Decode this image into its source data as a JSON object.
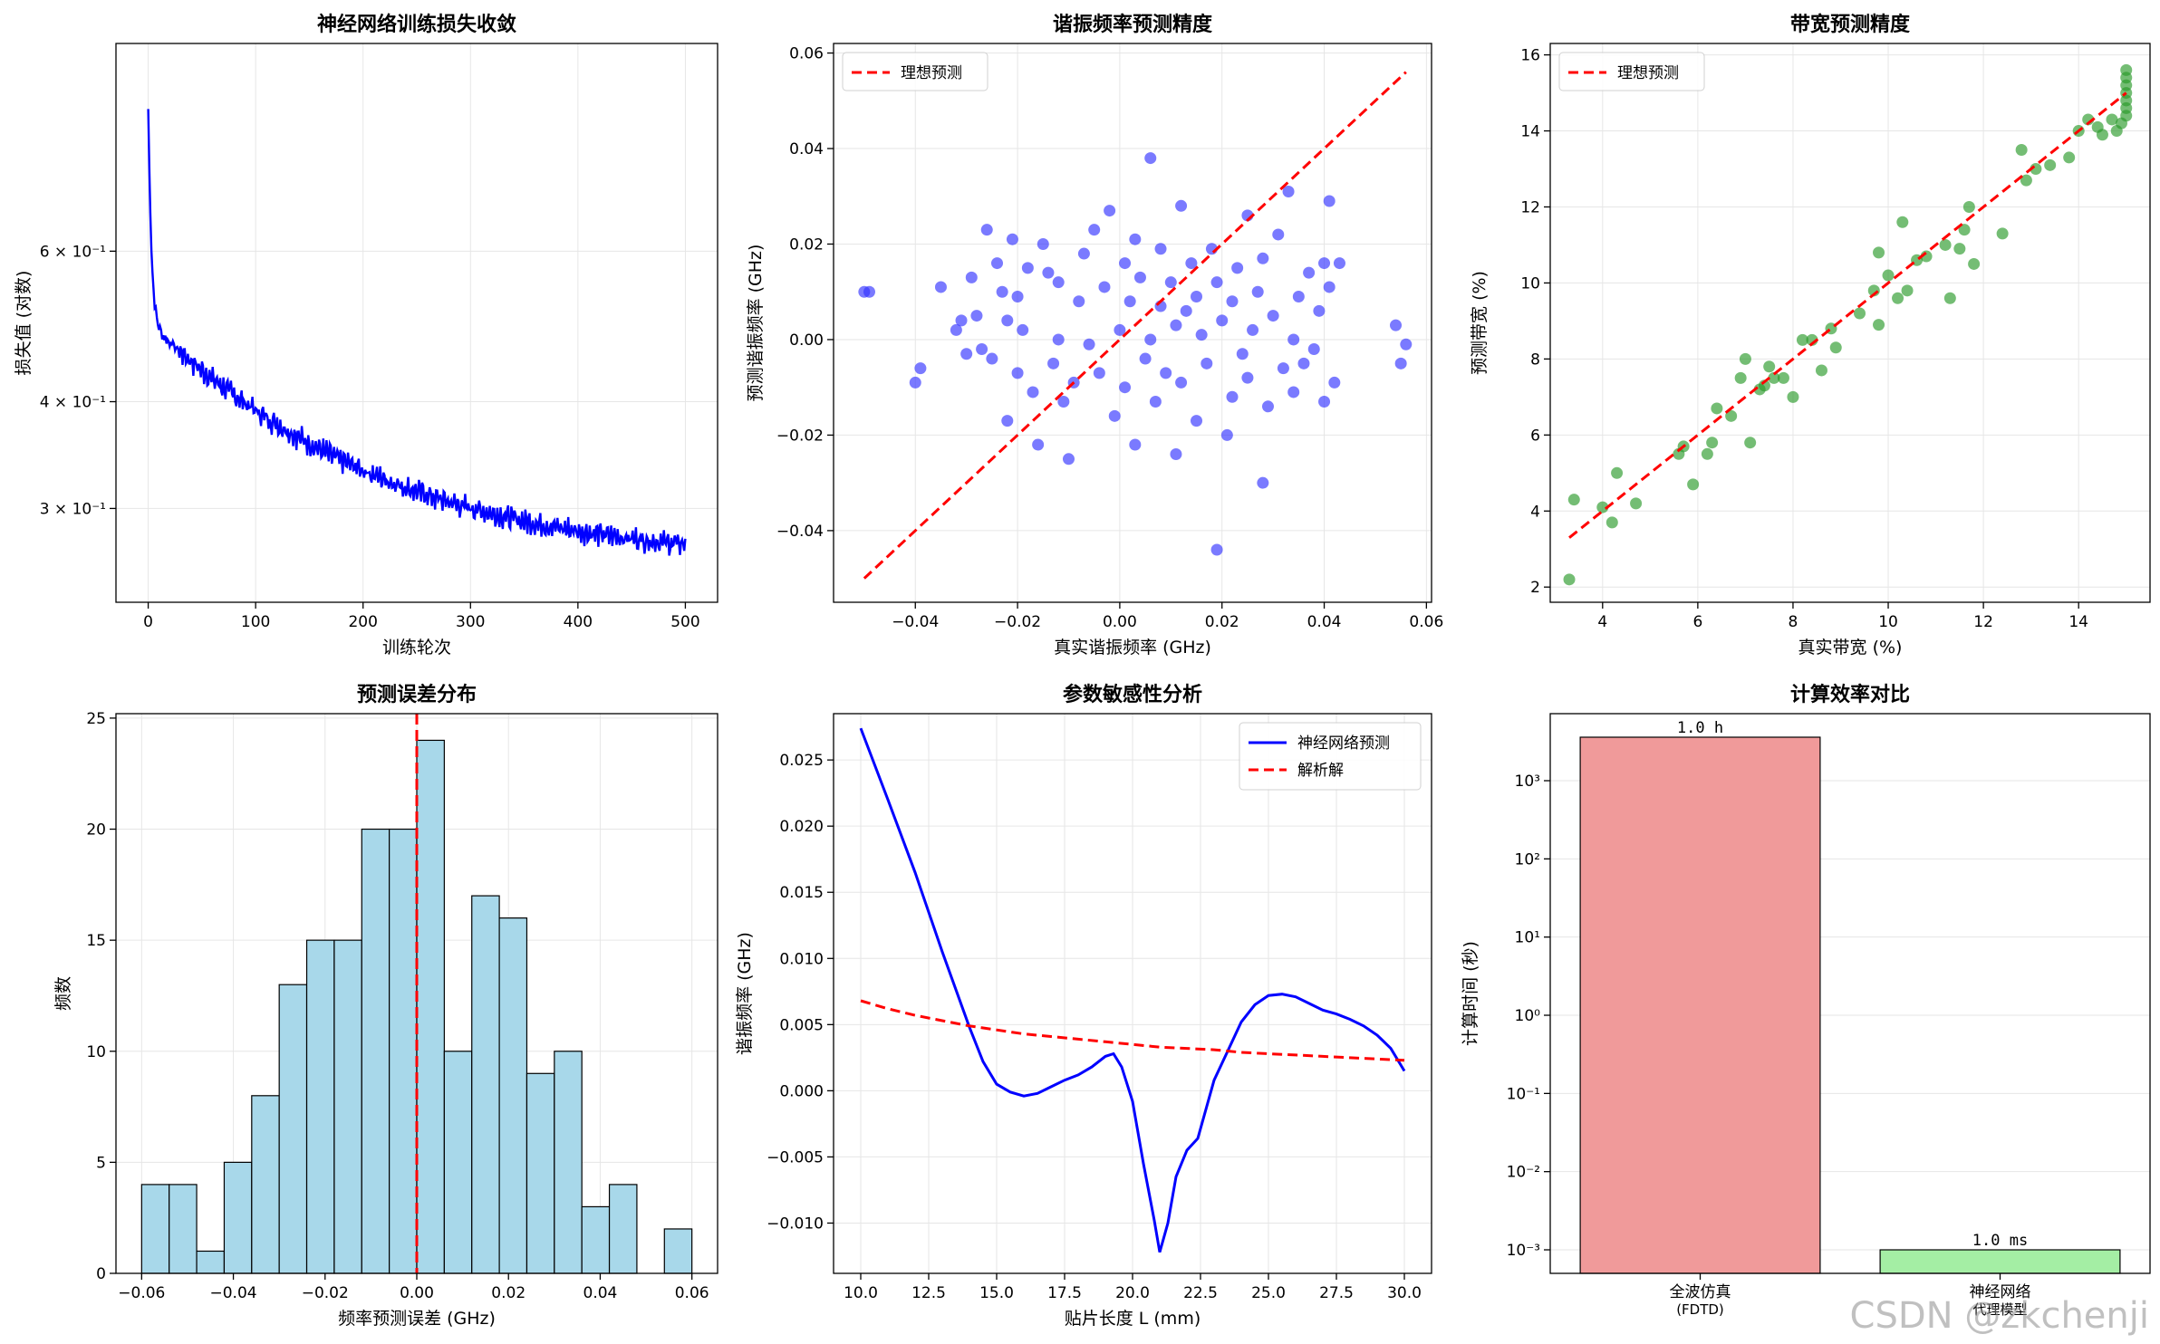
{
  "watermark": "CSDN @zkchenji",
  "colors": {
    "loss": "#0000ff",
    "ideal": "#ff0000",
    "freq_scatter": "#3333ff",
    "bw_scatter": "#2a9a2a",
    "hist_fill": "#a8d8ea",
    "nn_line": "#0000ff",
    "bar_fdtd": "#f09a9a",
    "bar_nn": "#a4eea4",
    "grid": "#e6e6e6"
  },
  "chart_data": [
    {
      "type": "line",
      "title": "神经网络训练损失收敛",
      "xlabel": "训练轮次",
      "ylabel": "损失值 (对数)",
      "yscale": "log",
      "xlim": [
        -30,
        530
      ],
      "ylim": [
        0.233,
        1.05
      ],
      "xticks": [
        0,
        100,
        200,
        300,
        400,
        500
      ],
      "xtick_labels": [
        "0",
        "100",
        "200",
        "300",
        "400",
        "500"
      ],
      "yticks": [
        0.6,
        0.4,
        0.3
      ],
      "ytick_labels": [
        "6 × 10⁻¹",
        "4 × 10⁻¹",
        "3 × 10⁻¹"
      ],
      "series": [
        {
          "name": "loss",
          "start": 0.88,
          "end": 0.26,
          "epochs": 500,
          "noise": 0.018
        }
      ]
    },
    {
      "type": "scatter",
      "title": "谐振频率预测精度",
      "xlabel": "真实谐振频率 (GHz)",
      "ylabel": "预测谐振频率 (GHz)",
      "xlim": [
        -0.056,
        0.061
      ],
      "ylim": [
        -0.055,
        0.062
      ],
      "xticks": [
        -0.04,
        -0.02,
        0.0,
        0.02,
        0.04,
        0.06
      ],
      "xtick_labels": [
        "−0.04",
        "−0.02",
        "0.00",
        "0.02",
        "0.04",
        "0.06"
      ],
      "yticks": [
        -0.04,
        -0.02,
        0.0,
        0.02,
        0.04,
        0.06
      ],
      "ytick_labels": [
        "−0.04",
        "−0.02",
        "0.00",
        "0.02",
        "0.04",
        "0.06"
      ],
      "legend": [
        "理想预测"
      ],
      "legend_loc": "upper-left",
      "ideal_line": [
        [
          -0.05,
          -0.05
        ],
        [
          0.056,
          0.056
        ]
      ],
      "points": [
        [
          -0.05,
          0.01
        ],
        [
          -0.049,
          0.01
        ],
        [
          -0.04,
          -0.009
        ],
        [
          -0.039,
          -0.006
        ],
        [
          -0.035,
          0.011
        ],
        [
          -0.032,
          0.002
        ],
        [
          -0.031,
          0.004
        ],
        [
          -0.03,
          -0.003
        ],
        [
          -0.029,
          0.013
        ],
        [
          -0.028,
          0.005
        ],
        [
          -0.027,
          -0.002
        ],
        [
          -0.026,
          0.023
        ],
        [
          -0.025,
          -0.004
        ],
        [
          -0.024,
          0.016
        ],
        [
          -0.023,
          0.01
        ],
        [
          -0.022,
          -0.017
        ],
        [
          -0.022,
          0.004
        ],
        [
          -0.021,
          0.021
        ],
        [
          -0.02,
          -0.007
        ],
        [
          -0.02,
          0.009
        ],
        [
          -0.019,
          0.002
        ],
        [
          -0.018,
          0.015
        ],
        [
          -0.017,
          -0.011
        ],
        [
          -0.016,
          -0.022
        ],
        [
          -0.015,
          0.02
        ],
        [
          -0.014,
          0.014
        ],
        [
          -0.013,
          -0.005
        ],
        [
          -0.012,
          0.0
        ],
        [
          -0.012,
          0.012
        ],
        [
          -0.011,
          -0.013
        ],
        [
          -0.01,
          -0.025
        ],
        [
          -0.009,
          -0.009
        ],
        [
          -0.008,
          0.008
        ],
        [
          -0.007,
          0.018
        ],
        [
          -0.006,
          -0.001
        ],
        [
          -0.005,
          0.023
        ],
        [
          -0.004,
          -0.007
        ],
        [
          -0.003,
          0.011
        ],
        [
          -0.002,
          0.027
        ],
        [
          -0.001,
          -0.016
        ],
        [
          0.0,
          0.002
        ],
        [
          0.001,
          0.016
        ],
        [
          0.001,
          -0.01
        ],
        [
          0.002,
          0.008
        ],
        [
          0.003,
          -0.022
        ],
        [
          0.003,
          0.021
        ],
        [
          0.004,
          0.013
        ],
        [
          0.005,
          -0.004
        ],
        [
          0.006,
          0.0
        ],
        [
          0.006,
          0.038
        ],
        [
          0.007,
          -0.013
        ],
        [
          0.008,
          0.007
        ],
        [
          0.008,
          0.019
        ],
        [
          0.009,
          -0.007
        ],
        [
          0.01,
          0.012
        ],
        [
          0.011,
          -0.024
        ],
        [
          0.011,
          0.003
        ],
        [
          0.012,
          0.028
        ],
        [
          0.012,
          -0.009
        ],
        [
          0.013,
          0.006
        ],
        [
          0.014,
          0.016
        ],
        [
          0.015,
          -0.017
        ],
        [
          0.015,
          0.009
        ],
        [
          0.016,
          0.001
        ],
        [
          0.017,
          -0.005
        ],
        [
          0.018,
          0.019
        ],
        [
          0.019,
          -0.044
        ],
        [
          0.019,
          0.012
        ],
        [
          0.02,
          0.004
        ],
        [
          0.021,
          -0.02
        ],
        [
          0.022,
          0.008
        ],
        [
          0.022,
          -0.012
        ],
        [
          0.023,
          0.015
        ],
        [
          0.024,
          -0.003
        ],
        [
          0.025,
          0.026
        ],
        [
          0.025,
          -0.008
        ],
        [
          0.026,
          0.002
        ],
        [
          0.027,
          0.01
        ],
        [
          0.028,
          -0.03
        ],
        [
          0.028,
          0.017
        ],
        [
          0.029,
          -0.014
        ],
        [
          0.03,
          0.005
        ],
        [
          0.031,
          0.022
        ],
        [
          0.032,
          -0.006
        ],
        [
          0.033,
          0.031
        ],
        [
          0.034,
          0.0
        ],
        [
          0.034,
          -0.011
        ],
        [
          0.035,
          0.009
        ],
        [
          0.036,
          -0.005
        ],
        [
          0.037,
          0.014
        ],
        [
          0.038,
          -0.002
        ],
        [
          0.039,
          0.006
        ],
        [
          0.04,
          0.016
        ],
        [
          0.04,
          -0.013
        ],
        [
          0.041,
          0.029
        ],
        [
          0.041,
          0.011
        ],
        [
          0.042,
          -0.009
        ],
        [
          0.043,
          0.016
        ],
        [
          0.054,
          0.003
        ],
        [
          0.055,
          -0.005
        ],
        [
          0.056,
          -0.001
        ]
      ]
    },
    {
      "type": "scatter",
      "title": "带宽预测精度",
      "xlabel": "真实带宽 (%)",
      "ylabel": "预测带宽 (%)",
      "xlim": [
        2.9,
        15.5
      ],
      "ylim": [
        1.6,
        16.3
      ],
      "xticks": [
        4,
        6,
        8,
        10,
        12,
        14
      ],
      "xtick_labels": [
        "4",
        "6",
        "8",
        "10",
        "12",
        "14"
      ],
      "yticks": [
        2,
        4,
        6,
        8,
        10,
        12,
        14,
        16
      ],
      "ytick_labels": [
        "2",
        "4",
        "6",
        "8",
        "10",
        "12",
        "14",
        "16"
      ],
      "legend": [
        "理想预测"
      ],
      "legend_loc": "upper-left",
      "ideal_line": [
        [
          3.3,
          3.3
        ],
        [
          15.0,
          15.0
        ]
      ],
      "points": [
        [
          3.3,
          2.2
        ],
        [
          3.4,
          4.3
        ],
        [
          4.0,
          4.1
        ],
        [
          4.2,
          3.7
        ],
        [
          4.3,
          5.0
        ],
        [
          4.7,
          4.2
        ],
        [
          5.6,
          5.5
        ],
        [
          5.7,
          5.7
        ],
        [
          5.9,
          4.7
        ],
        [
          6.2,
          5.5
        ],
        [
          6.3,
          5.8
        ],
        [
          6.4,
          6.7
        ],
        [
          6.7,
          6.5
        ],
        [
          6.9,
          7.5
        ],
        [
          7.0,
          8.0
        ],
        [
          7.1,
          5.8
        ],
        [
          7.3,
          7.2
        ],
        [
          7.4,
          7.3
        ],
        [
          7.5,
          7.8
        ],
        [
          7.6,
          7.5
        ],
        [
          7.8,
          7.5
        ],
        [
          8.0,
          7.0
        ],
        [
          8.2,
          8.5
        ],
        [
          8.4,
          8.5
        ],
        [
          8.6,
          7.7
        ],
        [
          8.8,
          8.8
        ],
        [
          8.9,
          8.3
        ],
        [
          9.4,
          9.2
        ],
        [
          9.7,
          9.8
        ],
        [
          9.8,
          8.9
        ],
        [
          9.8,
          10.8
        ],
        [
          10.0,
          10.2
        ],
        [
          10.2,
          9.6
        ],
        [
          10.3,
          11.6
        ],
        [
          10.4,
          9.8
        ],
        [
          10.6,
          10.6
        ],
        [
          10.8,
          10.7
        ],
        [
          11.2,
          11.0
        ],
        [
          11.3,
          9.6
        ],
        [
          11.5,
          10.9
        ],
        [
          11.6,
          11.4
        ],
        [
          11.7,
          12.0
        ],
        [
          11.8,
          10.5
        ],
        [
          12.4,
          11.3
        ],
        [
          12.8,
          13.5
        ],
        [
          12.9,
          12.7
        ],
        [
          13.1,
          13.0
        ],
        [
          13.4,
          13.1
        ],
        [
          13.8,
          13.3
        ],
        [
          14.0,
          14.0
        ],
        [
          14.2,
          14.3
        ],
        [
          14.4,
          14.1
        ],
        [
          14.5,
          13.9
        ],
        [
          14.7,
          14.3
        ],
        [
          14.8,
          14.0
        ],
        [
          14.9,
          14.2
        ],
        [
          15.0,
          14.4
        ],
        [
          15.0,
          14.6
        ],
        [
          15.0,
          14.8
        ],
        [
          15.0,
          15.0
        ],
        [
          15.0,
          15.2
        ],
        [
          15.0,
          15.4
        ],
        [
          15.0,
          15.6
        ]
      ]
    },
    {
      "type": "bar",
      "title": "预测误差分布",
      "xlabel": "频率预测误差 (GHz)",
      "ylabel": "频数",
      "xlim": [
        -0.0656,
        0.0656
      ],
      "ylim": [
        0,
        25.2
      ],
      "xticks": [
        -0.06,
        -0.04,
        -0.02,
        0.0,
        0.02,
        0.04,
        0.06
      ],
      "xtick_labels": [
        "−0.06",
        "−0.04",
        "−0.02",
        "0.00",
        "0.02",
        "0.04",
        "0.06"
      ],
      "yticks": [
        0,
        5,
        10,
        15,
        20,
        25
      ],
      "ytick_labels": [
        "0",
        "5",
        "10",
        "15",
        "20",
        "25"
      ],
      "bin_start": -0.06,
      "bin_width": 0.006,
      "values": [
        4,
        4,
        1,
        5,
        8,
        13,
        15,
        15,
        20,
        20,
        24,
        10,
        17,
        16,
        9,
        10,
        3,
        4,
        0,
        2
      ],
      "vline": 0.0
    },
    {
      "type": "line",
      "title": "参数敏感性分析",
      "xlabel": "贴片长度 L (mm)",
      "ylabel": "谐振频率 (GHz)",
      "xlim": [
        9.0,
        31.0
      ],
      "ylim": [
        -0.0138,
        0.0285
      ],
      "xticks": [
        10.0,
        12.5,
        15.0,
        17.5,
        20.0,
        22.5,
        25.0,
        27.5,
        30.0
      ],
      "xtick_labels": [
        "10.0",
        "12.5",
        "15.0",
        "17.5",
        "20.0",
        "22.5",
        "25.0",
        "27.5",
        "30.0"
      ],
      "yticks": [
        -0.01,
        -0.005,
        0.0,
        0.005,
        0.01,
        0.015,
        0.02,
        0.025
      ],
      "ytick_labels": [
        "−0.010",
        "−0.005",
        "0.000",
        "0.005",
        "0.010",
        "0.015",
        "0.020",
        "0.025"
      ],
      "legend": [
        "神经网络预测",
        "解析解"
      ],
      "legend_loc": "upper-right",
      "series": [
        {
          "name": "神经网络预测",
          "x": [
            10.0,
            11.0,
            12.0,
            13.0,
            14.0,
            14.5,
            15.0,
            15.5,
            16.0,
            16.5,
            17.0,
            17.5,
            18.0,
            18.5,
            19.0,
            19.3,
            19.6,
            20.0,
            20.4,
            20.8,
            21.0,
            21.3,
            21.6,
            22.0,
            22.4,
            23.0,
            23.5,
            24.0,
            24.5,
            25.0,
            25.5,
            26.0,
            26.5,
            27.0,
            27.5,
            28.0,
            28.5,
            29.0,
            29.5,
            30.0
          ],
          "y": [
            0.0274,
            0.022,
            0.0165,
            0.0105,
            0.0048,
            0.0022,
            0.0005,
            -0.0001,
            -0.0004,
            -0.0002,
            0.0003,
            0.0008,
            0.0012,
            0.0018,
            0.0026,
            0.0028,
            0.0018,
            -0.0008,
            -0.0055,
            -0.0098,
            -0.0122,
            -0.01,
            -0.0065,
            -0.0045,
            -0.0036,
            0.0008,
            0.003,
            0.0052,
            0.0065,
            0.0072,
            0.0073,
            0.0071,
            0.0066,
            0.0061,
            0.0058,
            0.0054,
            0.0049,
            0.0042,
            0.0032,
            0.0015
          ]
        },
        {
          "name": "解析解",
          "x": [
            10,
            11,
            12,
            13,
            14,
            15,
            16,
            17,
            18,
            19,
            20,
            21,
            22,
            23,
            24,
            25,
            26,
            27,
            28,
            29,
            30
          ],
          "y": [
            0.0068,
            0.0062,
            0.0057,
            0.0053,
            0.0049,
            0.0046,
            0.0043,
            0.0041,
            0.0039,
            0.0037,
            0.0035,
            0.0033,
            0.0032,
            0.0031,
            0.0029,
            0.0028,
            0.0027,
            0.0026,
            0.0025,
            0.0024,
            0.0023
          ]
        }
      ]
    },
    {
      "type": "bar",
      "title": "计算效率对比",
      "xlabel": "",
      "ylabel": "计算时间 (秒)",
      "yscale": "log",
      "ylim": [
        0.0005,
        7200
      ],
      "yticks": [
        1000,
        100,
        10,
        1,
        0.1,
        0.01,
        0.001
      ],
      "ytick_labels": [
        "10³",
        "10²",
        "10¹",
        "10⁰",
        "10⁻¹",
        "10⁻²",
        "10⁻³"
      ],
      "categories": [
        [
          "全波仿真",
          "(FDTD)"
        ],
        [
          "神经网络",
          "代理模型"
        ]
      ],
      "values": [
        3600,
        0.001
      ],
      "bar_labels": [
        "1.0 h",
        "1.0 ms"
      ]
    }
  ]
}
